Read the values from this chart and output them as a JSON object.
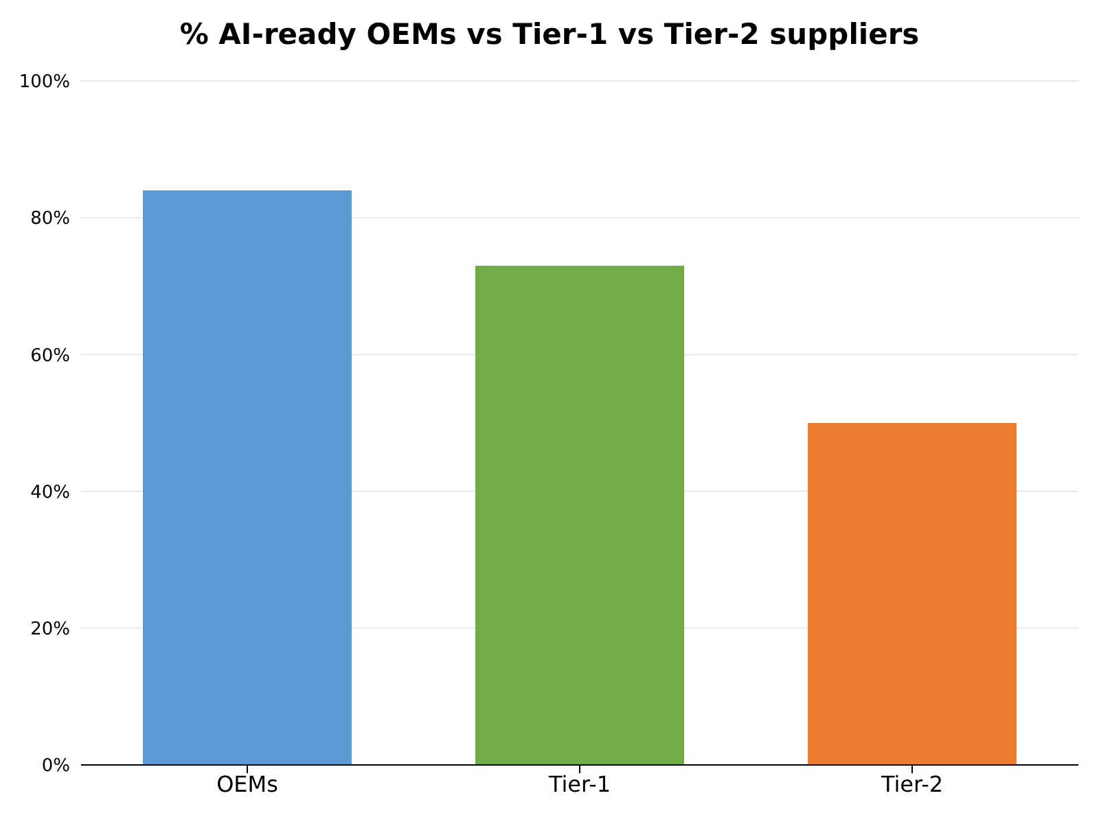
{
  "chart_data": {
    "type": "bar",
    "title": "% AI-ready OEMs vs Tier-1 vs Tier-2 suppliers",
    "categories": [
      "OEMs",
      "Tier-1",
      "Tier-2"
    ],
    "values": [
      84,
      73,
      50
    ],
    "colors": [
      "#5b9bd5",
      "#70ad47",
      "#ed7d31"
    ],
    "ylim": [
      0,
      100
    ],
    "yticks": [
      {
        "value": 0,
        "label": "0%"
      },
      {
        "value": 20,
        "label": "20%"
      },
      {
        "value": 40,
        "label": "40%"
      },
      {
        "value": 60,
        "label": "60%"
      },
      {
        "value": 80,
        "label": "80%"
      },
      {
        "value": 100,
        "label": "100%"
      }
    ],
    "grid": "y"
  }
}
